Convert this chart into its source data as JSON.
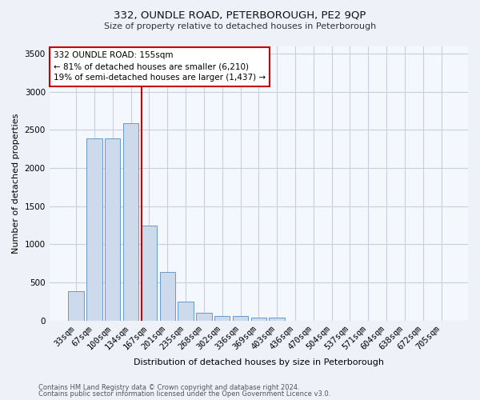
{
  "title1": "332, OUNDLE ROAD, PETERBOROUGH, PE2 9QP",
  "title2": "Size of property relative to detached houses in Peterborough",
  "xlabel": "Distribution of detached houses by size in Peterborough",
  "ylabel": "Number of detached properties",
  "footnote1": "Contains HM Land Registry data © Crown copyright and database right 2024.",
  "footnote2": "Contains public sector information licensed under the Open Government Licence v3.0.",
  "bar_labels": [
    "33sqm",
    "67sqm",
    "100sqm",
    "134sqm",
    "167sqm",
    "201sqm",
    "235sqm",
    "268sqm",
    "302sqm",
    "336sqm",
    "369sqm",
    "403sqm",
    "436sqm",
    "470sqm",
    "504sqm",
    "537sqm",
    "571sqm",
    "604sqm",
    "638sqm",
    "672sqm",
    "705sqm"
  ],
  "bar_values": [
    390,
    2390,
    2390,
    2590,
    1240,
    640,
    245,
    100,
    65,
    55,
    40,
    40,
    0,
    0,
    0,
    0,
    0,
    0,
    0,
    0,
    0
  ],
  "bar_color": "#ccdaec",
  "bar_edge_color": "#6699cc",
  "vline_x": 3.57,
  "vline_color": "#cc0000",
  "annotation_text": "332 OUNDLE ROAD: 155sqm\n← 81% of detached houses are smaller (6,210)\n19% of semi-detached houses are larger (1,437) →",
  "annotation_box_color": "white",
  "annotation_box_edge": "#cc0000",
  "ylim": [
    0,
    3600
  ],
  "yticks": [
    0,
    500,
    1000,
    1500,
    2000,
    2500,
    3000,
    3500
  ],
  "bg_color": "#eef2f8",
  "plot_bg_color": "#f4f7fc",
  "grid_color": "#c8d0dc",
  "title1_fontsize": 9.5,
  "title2_fontsize": 8.0,
  "xlabel_fontsize": 8.0,
  "ylabel_fontsize": 8.0,
  "tick_fontsize": 7.5,
  "footnote_fontsize": 6.0,
  "annot_fontsize": 7.5
}
